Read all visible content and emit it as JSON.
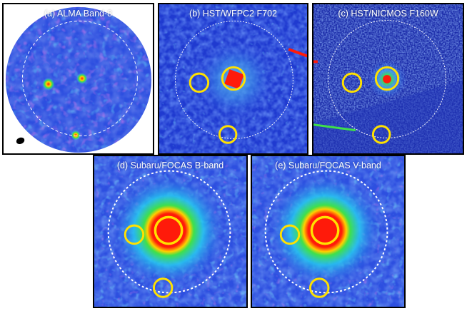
{
  "panels": {
    "a": {
      "label": "(a) ALMA Band-8"
    },
    "b": {
      "label": "(b) HST/WFPC2 F702"
    },
    "c": {
      "label": "(c) HST/NICMOS F160W"
    },
    "d": {
      "label": "(d) Subaru/FOCAS B-band"
    },
    "e": {
      "label": "(e) Subaru/FOCAS V-band"
    }
  },
  "colors": {
    "background_field": "#2d4fe0",
    "deep_blue": "#1a2fb8",
    "cyan": "#25c8f0",
    "magenta": "#c83ad8",
    "green": "#3fe04a",
    "red": "#ff1a0a",
    "yellow_circle": "#ffe100",
    "dashed_circle": "#ffffff"
  }
}
